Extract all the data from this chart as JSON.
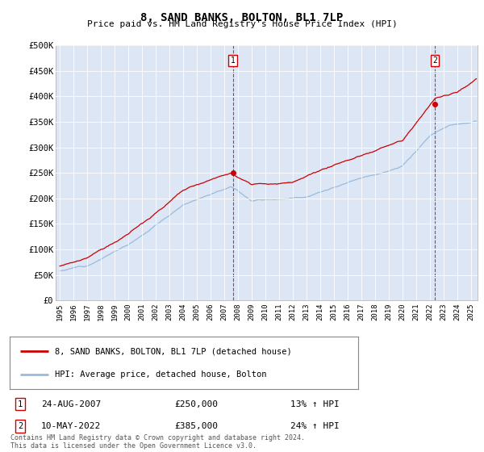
{
  "title": "8, SAND BANKS, BOLTON, BL1 7LP",
  "subtitle": "Price paid vs. HM Land Registry's House Price Index (HPI)",
  "ylim": [
    0,
    500000
  ],
  "yticks": [
    0,
    50000,
    100000,
    150000,
    200000,
    250000,
    300000,
    350000,
    400000,
    450000,
    500000
  ],
  "ytick_labels": [
    "£0",
    "£50K",
    "£100K",
    "£150K",
    "£200K",
    "£250K",
    "£300K",
    "£350K",
    "£400K",
    "£450K",
    "£500K"
  ],
  "background_color": "#dce6f5",
  "line1_color": "#cc0000",
  "line2_color": "#99bbdd",
  "marker_color": "#cc0000",
  "t1_x": 2007.625,
  "t1_y": 250000,
  "t2_x": 2022.375,
  "t2_y": 385000,
  "legend_line1": "8, SAND BANKS, BOLTON, BL1 7LP (detached house)",
  "legend_line2": "HPI: Average price, detached house, Bolton",
  "annotation1_date": "24-AUG-2007",
  "annotation1_price": "£250,000",
  "annotation1_hpi": "13% ↑ HPI",
  "annotation2_date": "10-MAY-2022",
  "annotation2_price": "£385,000",
  "annotation2_hpi": "24% ↑ HPI",
  "footer": "Contains HM Land Registry data © Crown copyright and database right 2024.\nThis data is licensed under the Open Government Licence v3.0.",
  "xlim_start": 1994.7,
  "xlim_end": 2025.5,
  "xticks": [
    1995,
    1996,
    1997,
    1998,
    1999,
    2000,
    2001,
    2002,
    2003,
    2004,
    2005,
    2006,
    2007,
    2008,
    2009,
    2010,
    2011,
    2012,
    2013,
    2014,
    2015,
    2016,
    2017,
    2018,
    2019,
    2020,
    2021,
    2022,
    2023,
    2024,
    2025
  ]
}
